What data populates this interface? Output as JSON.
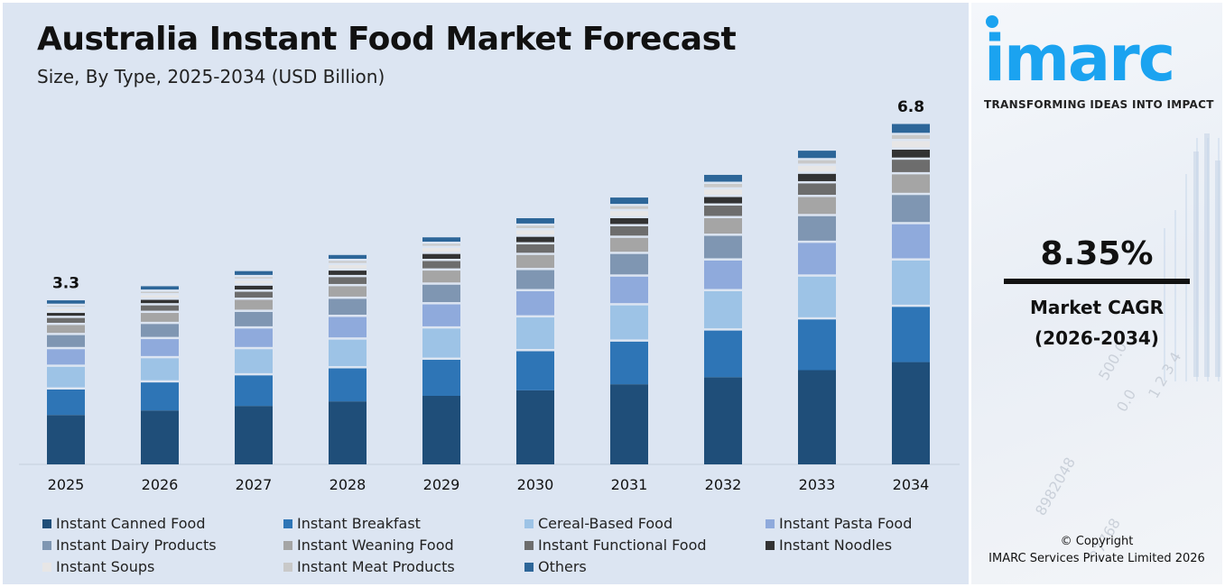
{
  "chart": {
    "title": "Australia Instant Food Market Forecast",
    "subtitle": "Size, By Type, 2025-2034 (USD Billion)"
  },
  "chart_data": {
    "type": "bar",
    "stacked": true,
    "title": "Australia Instant Food Market Forecast",
    "subtitle": "Size, By Type, 2025-2034 (USD Billion)",
    "categories": [
      "2025",
      "2026",
      "2027",
      "2028",
      "2029",
      "2030",
      "2031",
      "2032",
      "2033",
      "2034"
    ],
    "totals": [
      3.3,
      3.58,
      3.88,
      4.2,
      4.55,
      4.93,
      5.34,
      5.79,
      6.27,
      6.8
    ],
    "total_labels": {
      "2025": "3.3",
      "2034": "6.8"
    },
    "ylim": [
      0,
      7
    ],
    "legend_position": "bottom",
    "series": [
      {
        "name": "Instant Canned Food",
        "color": "#1f4e79",
        "values": [
          0.98,
          1.07,
          1.16,
          1.25,
          1.36,
          1.47,
          1.59,
          1.73,
          1.87,
          2.03
        ]
      },
      {
        "name": "Instant Breakfast",
        "color": "#2e75b6",
        "values": [
          0.55,
          0.6,
          0.65,
          0.7,
          0.76,
          0.82,
          0.89,
          0.97,
          1.05,
          1.14
        ]
      },
      {
        "name": "Cereal-Based Food",
        "color": "#9dc3e6",
        "values": [
          0.45,
          0.48,
          0.52,
          0.57,
          0.62,
          0.67,
          0.72,
          0.78,
          0.85,
          0.92
        ]
      },
      {
        "name": "Instant Pasta Food",
        "color": "#8faadc",
        "values": [
          0.35,
          0.38,
          0.41,
          0.45,
          0.48,
          0.52,
          0.57,
          0.61,
          0.67,
          0.72
        ]
      },
      {
        "name": "Instant Dairy Products",
        "color": "#7f96b2",
        "values": [
          0.28,
          0.3,
          0.33,
          0.36,
          0.39,
          0.42,
          0.45,
          0.49,
          0.53,
          0.58
        ]
      },
      {
        "name": "Instant Weaning Food",
        "color": "#a5a5a5",
        "values": [
          0.2,
          0.22,
          0.24,
          0.25,
          0.28,
          0.3,
          0.32,
          0.35,
          0.38,
          0.41
        ]
      },
      {
        "name": "Instant Functional Food",
        "color": "#6d6d6d",
        "values": [
          0.14,
          0.15,
          0.16,
          0.18,
          0.19,
          0.21,
          0.23,
          0.25,
          0.27,
          0.29
        ]
      },
      {
        "name": "Instant Noodles",
        "color": "#333333",
        "values": [
          0.1,
          0.11,
          0.12,
          0.13,
          0.14,
          0.15,
          0.16,
          0.17,
          0.19,
          0.2
        ]
      },
      {
        "name": "Instant Soups",
        "color": "#e7e6e6",
        "values": [
          0.08,
          0.09,
          0.1,
          0.11,
          0.12,
          0.13,
          0.14,
          0.15,
          0.16,
          0.17
        ]
      },
      {
        "name": "Instant Meat Products",
        "color": "#c9c9c9",
        "values": [
          0.06,
          0.07,
          0.07,
          0.08,
          0.08,
          0.09,
          0.1,
          0.11,
          0.11,
          0.12
        ]
      },
      {
        "name": "Others",
        "color": "#2d6699",
        "values": [
          0.11,
          0.11,
          0.12,
          0.12,
          0.13,
          0.15,
          0.17,
          0.18,
          0.19,
          0.22
        ]
      }
    ]
  },
  "side": {
    "logo": "imarc",
    "tagline": "TRANSFORMING IDEAS INTO IMPACT",
    "cagr_value": "8.35%",
    "cagr_label": "Market CAGR",
    "cagr_period": "(2026-2034)",
    "copyright_line1": "© Copyright",
    "copyright_line2": "IMARC Services Private Limited 2026"
  },
  "colors": {
    "panel_bg": "#dce5f2",
    "logo_blue": "#1ba3f0"
  }
}
